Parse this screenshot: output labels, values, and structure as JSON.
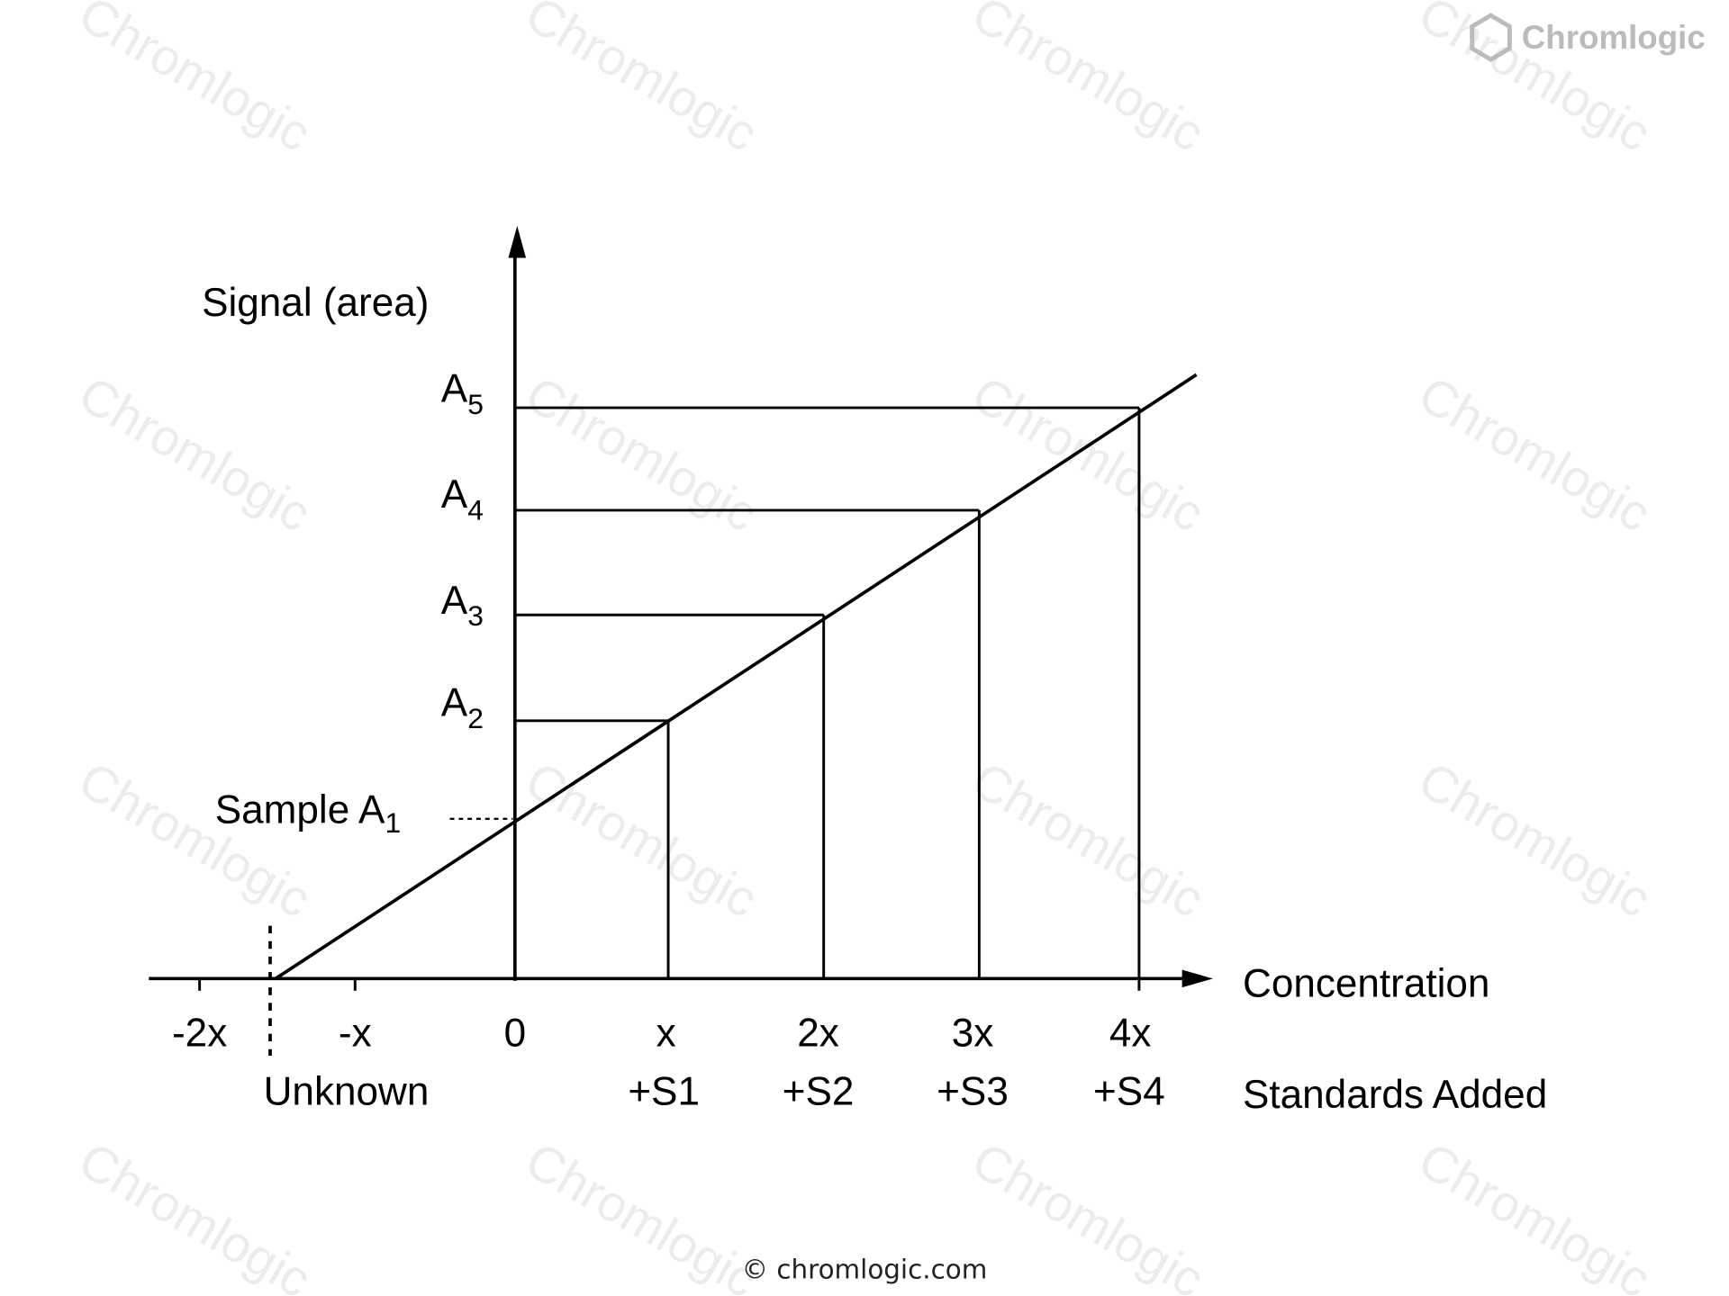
{
  "watermark": "Chromlogic",
  "logo": "Chromlogic",
  "y_axis_label": "Signal (area)",
  "x_axis_label": "Concentration",
  "row_label": "Standards Added",
  "signal_labels": [
    {
      "main": "A",
      "sub": "5"
    },
    {
      "main": "A",
      "sub": "4"
    },
    {
      "main": "A",
      "sub": "3"
    },
    {
      "main": "A",
      "sub": "2"
    }
  ],
  "sample_label": {
    "main": "Sample A",
    "sub": "1"
  },
  "x_ticks": [
    "-2x",
    "-x",
    "0",
    "x",
    "2x",
    "3x",
    "4x"
  ],
  "unknown_label": "Unknown",
  "standards": [
    "+S1",
    "+S2",
    "+S3",
    "+S4"
  ],
  "footer": "© chromlogic.com"
}
